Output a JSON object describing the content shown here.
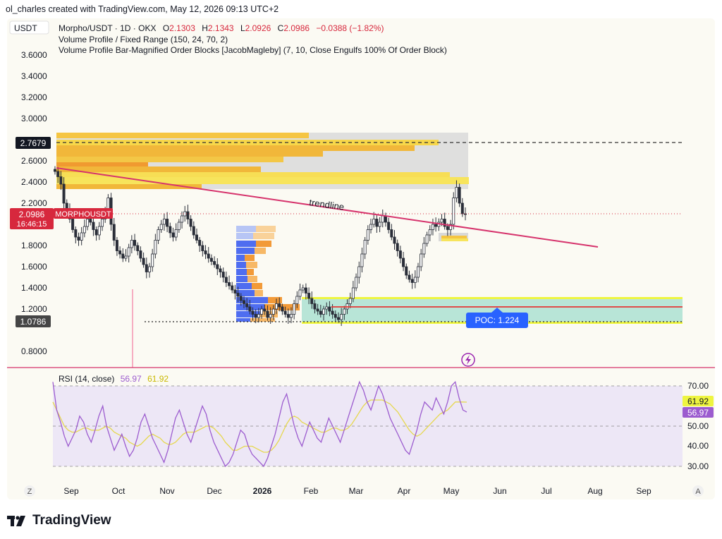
{
  "header": {
    "caption": "ol_charles created with TradingView.com, May 12, 2026 09:13 UTC+2"
  },
  "symbol_box": "USDT",
  "legend": {
    "symbol": "Morpho/USDT · 1D · OKX",
    "o_label": "O",
    "o_value": "2.1303",
    "h_label": "H",
    "h_value": "2.1343",
    "l_label": "L",
    "l_value": "2.0926",
    "c_label": "C",
    "c_value": "2.0986",
    "change": "−0.0388 (−1.82%)",
    "indicator1": "Volume Profile / Fixed Range (150, 24, 70, 2)",
    "indicator2": "Volume Profile Bar-Magnified Order Blocks [JacobMagleby] (7, 10, Close Engulfs 100% Of Order Block)"
  },
  "price_labels": {
    "level_276": "2.7679",
    "current_price": "2.0986",
    "current_symbol": "MORPHOUSDT",
    "countdown": "16:46:15",
    "level_107": "1.0786"
  },
  "annotations": {
    "trendline": "trendline",
    "poc": "POC: 1.224"
  },
  "rsi": {
    "title": "RSI (14, close)",
    "value1": "56.97",
    "value2": "61.92",
    "ticks": [
      "70.00",
      "50.00",
      "40.00",
      "30.00"
    ]
  },
  "footer": {
    "left_btn": "Z",
    "right_btn": "A",
    "brand": "TradingView"
  },
  "colors": {
    "up": "#089981",
    "down": "#f23645",
    "candle": "#2a2e39",
    "trendline": "#d6336c",
    "rsi_line": "#9c5ccf",
    "rsi_ma": "#e6d84f",
    "rsi_band": "#ede7f6",
    "poc_box": "#2962ff",
    "price_tag": "#d7283d"
  },
  "chart_data": [
    {
      "type": "candlestick",
      "title": "Morpho/USDT · 1D · OKX",
      "ylim": [
        0.7,
        3.75
      ],
      "y_ticks": [
        "3.6000",
        "3.4000",
        "3.2000",
        "3.0000",
        "2.6000",
        "2.4000",
        "2.2000",
        "1.8000",
        "1.6000",
        "1.4000",
        "1.2000",
        "0.8000"
      ],
      "x_ticks": [
        "Sep",
        "Oct",
        "Nov",
        "Dec",
        "2026",
        "Feb",
        "Mar",
        "Apr",
        "May",
        "Jun",
        "Jul",
        "Aug",
        "Sep"
      ],
      "last": {
        "open": 2.1303,
        "high": 2.1343,
        "low": 2.0926,
        "close": 2.0986
      },
      "closes": [
        2.5,
        2.45,
        2.38,
        2.2,
        2.15,
        2.05,
        1.95,
        1.88,
        1.85,
        1.92,
        1.98,
        2.05,
        2.02,
        1.95,
        1.9,
        1.98,
        2.05,
        2.1,
        2.25,
        2.0,
        1.85,
        1.75,
        1.72,
        1.68,
        1.7,
        1.78,
        1.85,
        1.8,
        1.75,
        1.68,
        1.62,
        1.55,
        1.6,
        1.72,
        1.85,
        1.95,
        2.0,
        2.05,
        1.98,
        1.92,
        1.88,
        1.95,
        2.02,
        2.08,
        2.12,
        2.05,
        1.98,
        1.9,
        1.85,
        1.8,
        1.75,
        1.72,
        1.68,
        1.65,
        1.62,
        1.58,
        1.55,
        1.5,
        1.45,
        1.42,
        1.38,
        1.35,
        1.32,
        1.28,
        1.25,
        1.22,
        1.18,
        1.15,
        1.12,
        1.15,
        1.2,
        1.18,
        1.12,
        1.15,
        1.2,
        1.25,
        1.22,
        1.18,
        1.15,
        1.12,
        1.15,
        1.25,
        1.32,
        1.38,
        1.4,
        1.35,
        1.3,
        1.25,
        1.2,
        1.18,
        1.15,
        1.2,
        1.22,
        1.18,
        1.15,
        1.12,
        1.1,
        1.15,
        1.2,
        1.25,
        1.3,
        1.4,
        1.5,
        1.6,
        1.72,
        1.85,
        1.95,
        2.0,
        2.05,
        1.98,
        2.02,
        2.08,
        2.02,
        1.95,
        1.88,
        1.82,
        1.75,
        1.68,
        1.6,
        1.52,
        1.48,
        1.45,
        1.5,
        1.6,
        1.72,
        1.82,
        1.9,
        1.95,
        2.0,
        1.98,
        2.02,
        2.05,
        1.98,
        1.95,
        2.0,
        2.25,
        2.35,
        2.2,
        2.1,
        2.0986
      ],
      "x_start": "2025-08-20",
      "x_step_days": 2
    },
    {
      "type": "line",
      "title": "RSI (14, close)",
      "ylim": [
        25,
        75
      ],
      "y_ticks": [
        70,
        50,
        40,
        30
      ],
      "series": [
        {
          "name": "RSI",
          "values": [
            72,
            58,
            52,
            45,
            40,
            44,
            48,
            55,
            52,
            46,
            42,
            48,
            55,
            60,
            50,
            44,
            38,
            42,
            46,
            40,
            35,
            38,
            44,
            52,
            56,
            50,
            44,
            40,
            36,
            32,
            38,
            46,
            54,
            58,
            52,
            46,
            42,
            48,
            54,
            60,
            56,
            48,
            42,
            38,
            34,
            30,
            32,
            36,
            42,
            48,
            46,
            40,
            36,
            34,
            32,
            30,
            34,
            40,
            46,
            54,
            62,
            66,
            58,
            50,
            44,
            40,
            46,
            52,
            48,
            44,
            42,
            48,
            54,
            50,
            46,
            42,
            48,
            54,
            60,
            66,
            72,
            68,
            62,
            58,
            64,
            70,
            66,
            60,
            54,
            50,
            46,
            42,
            38,
            36,
            42,
            48,
            56,
            62,
            60,
            58,
            64,
            60,
            56,
            62,
            70,
            72,
            64,
            58,
            56.97
          ]
        },
        {
          "name": "RSI-based MA",
          "values": [
            62,
            58,
            54,
            50,
            48,
            47,
            47,
            48,
            49,
            49,
            48,
            48,
            48,
            49,
            50,
            49,
            47,
            46,
            45,
            44,
            42,
            41,
            40,
            41,
            43,
            45,
            46,
            45,
            44,
            42,
            41,
            41,
            42,
            44,
            46,
            47,
            47,
            47,
            48,
            49,
            50,
            50,
            49,
            47,
            45,
            42,
            40,
            38,
            38,
            39,
            40,
            40,
            40,
            39,
            38,
            37,
            37,
            38,
            40,
            43,
            47,
            51,
            54,
            55,
            54,
            52,
            51,
            50,
            49,
            48,
            47,
            47,
            48,
            49,
            49,
            48,
            48,
            49,
            51,
            54,
            57,
            60,
            62,
            63,
            63,
            63,
            63,
            62,
            61,
            59,
            57,
            54,
            51,
            48,
            46,
            45,
            46,
            48,
            50,
            52,
            54,
            56,
            57,
            58,
            60,
            62,
            62,
            62,
            61.92
          ]
        }
      ]
    }
  ]
}
